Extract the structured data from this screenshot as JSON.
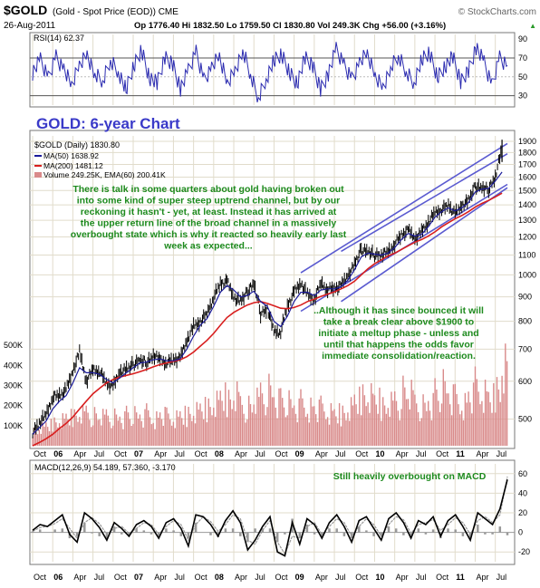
{
  "header": {
    "symbol": "$GOLD",
    "description": "(Gold - Spot Price (EOD)) CME",
    "source": "© StockCharts.com",
    "date": "26-Aug-2011",
    "stats": "Op 1776.40  Hi 1832.50  Lo 1759.50  Cl 1830.80  Vol 249.3K  Chg +56.00 (+3.16%)",
    "stats_marker": "▲"
  },
  "colors": {
    "rsi_line": "#2b2bb0",
    "price_bar": "#000000",
    "ma50": "#1a1a9a",
    "ma200": "#d81e1e",
    "volume": "#d98a8a",
    "channel": "#5a5ad0",
    "annotation_green": "#1d8a1d",
    "title_blue": "#3a3ac8",
    "macd": "#000000",
    "signal": "#999999",
    "panel_bg": "#f7f3e6",
    "grid": "#e1dccb"
  },
  "chart_data": [
    {
      "type": "line",
      "panel": "rsi",
      "label": "RSI(14) 62.37",
      "ylim": [
        20,
        95
      ],
      "reference_lines": [
        30,
        50,
        70
      ],
      "tick_labels": [
        "90",
        "70",
        "50",
        "30"
      ],
      "series": [
        {
          "name": "RSI(14)",
          "values": [
            55,
            67,
            48,
            72,
            58,
            40,
            63,
            75,
            52,
            45,
            68,
            57,
            35,
            61,
            79,
            50,
            42,
            70,
            64,
            38,
            55,
            76,
            47,
            60,
            71,
            43,
            58,
            77,
            52,
            28,
            49,
            66,
            73,
            55,
            44,
            69,
            61,
            37,
            54,
            78,
            62,
            48,
            65,
            74,
            51,
            40,
            59,
            72,
            56,
            45,
            67,
            75,
            50,
            62,
            70,
            44,
            57,
            82,
            64,
            40,
            71,
            62
          ]
        }
      ]
    },
    {
      "type": "line",
      "panel": "price",
      "title": "GOLD: 6-year Chart",
      "legend": [
        "$GOLD (Daily) 1830.80",
        "MA(50) 1638.92",
        "MA(200) 1481.12",
        "Volume 249.25K, EMA(60) 200.41K"
      ],
      "x_tick_labels": [
        "Oct",
        "06",
        "Apr",
        "Jul",
        "Oct",
        "07",
        "Apr",
        "Jul",
        "Oct",
        "08",
        "Apr",
        "Jul",
        "Oct",
        "09",
        "Apr",
        "Jul",
        "Oct",
        "10",
        "Apr",
        "Jul",
        "Oct",
        "11",
        "Apr",
        "Jul"
      ],
      "y_tick_labels": [
        "1900",
        "1800",
        "1700",
        "1600",
        "1500",
        "1400",
        "1300",
        "1200",
        "1100",
        "1000",
        "900",
        "800",
        "700",
        "600",
        "500"
      ],
      "volume_tick_labels": [
        "500K",
        "400K",
        "300K",
        "200K",
        "100K"
      ],
      "ylim": [
        440,
        1950
      ],
      "scale": "log",
      "x": [
        "2005-10",
        "2005-11",
        "2005-12",
        "2006-01",
        "2006-02",
        "2006-03",
        "2006-04",
        "2006-05",
        "2006-06",
        "2006-07",
        "2006-08",
        "2006-09",
        "2006-10",
        "2006-11",
        "2006-12",
        "2007-01",
        "2007-02",
        "2007-03",
        "2007-04",
        "2007-05",
        "2007-06",
        "2007-07",
        "2007-08",
        "2007-09",
        "2007-10",
        "2007-11",
        "2007-12",
        "2008-01",
        "2008-02",
        "2008-03",
        "2008-04",
        "2008-05",
        "2008-06",
        "2008-07",
        "2008-08",
        "2008-09",
        "2008-10",
        "2008-11",
        "2008-12",
        "2009-01",
        "2009-02",
        "2009-03",
        "2009-04",
        "2009-05",
        "2009-06",
        "2009-07",
        "2009-08",
        "2009-09",
        "2009-10",
        "2009-11",
        "2009-12",
        "2010-01",
        "2010-02",
        "2010-03",
        "2010-04",
        "2010-05",
        "2010-06",
        "2010-07",
        "2010-08",
        "2010-09",
        "2010-10",
        "2010-11",
        "2010-12",
        "2011-01",
        "2011-02",
        "2011-03",
        "2011-04",
        "2011-05",
        "2011-06",
        "2011-07",
        "2011-08"
      ],
      "series": [
        {
          "name": "$GOLD",
          "values": [
            470,
            490,
            510,
            555,
            560,
            575,
            630,
            690,
            600,
            635,
            630,
            595,
            585,
            630,
            635,
            650,
            665,
            655,
            680,
            665,
            655,
            665,
            670,
            730,
            780,
            800,
            830,
            900,
            960,
            970,
            900,
            880,
            920,
            960,
            830,
            850,
            760,
            760,
            860,
            920,
            960,
            910,
            890,
            960,
            935,
            940,
            950,
            1000,
            1050,
            1130,
            1120,
            1100,
            1100,
            1115,
            1160,
            1210,
            1240,
            1190,
            1230,
            1290,
            1350,
            1370,
            1400,
            1340,
            1400,
            1430,
            1530,
            1520,
            1510,
            1600,
            1830
          ]
        },
        {
          "name": "MA(50)",
          "values": [
            465,
            480,
            495,
            525,
            545,
            560,
            595,
            640,
            625,
            625,
            620,
            605,
            595,
            610,
            625,
            640,
            655,
            658,
            665,
            668,
            662,
            662,
            668,
            700,
            745,
            785,
            810,
            860,
            920,
            950,
            930,
            900,
            905,
            925,
            880,
            860,
            800,
            780,
            820,
            880,
            920,
            920,
            905,
            930,
            935,
            935,
            945,
            975,
            1025,
            1090,
            1110,
            1105,
            1100,
            1110,
            1140,
            1185,
            1220,
            1205,
            1215,
            1260,
            1320,
            1355,
            1380,
            1360,
            1380,
            1415,
            1490,
            1510,
            1515,
            1570,
            1639
          ]
        },
        {
          "name": "MA(200)",
          "values": [
            440,
            447,
            455,
            465,
            478,
            490,
            505,
            525,
            545,
            565,
            580,
            595,
            605,
            612,
            617,
            622,
            628,
            635,
            643,
            650,
            655,
            660,
            665,
            675,
            690,
            710,
            730,
            755,
            785,
            815,
            835,
            850,
            865,
            875,
            880,
            872,
            862,
            852,
            850,
            855,
            865,
            880,
            890,
            902,
            912,
            922,
            935,
            950,
            970,
            1000,
            1030,
            1055,
            1075,
            1095,
            1110,
            1130,
            1150,
            1170,
            1185,
            1205,
            1230,
            1260,
            1285,
            1310,
            1330,
            1355,
            1385,
            1410,
            1430,
            1455,
            1481
          ]
        }
      ],
      "volume": [
        80,
        95,
        105,
        120,
        130,
        140,
        150,
        160,
        170,
        155,
        140,
        150,
        145,
        150,
        160,
        150,
        155,
        165,
        150,
        160,
        145,
        150,
        160,
        170,
        180,
        190,
        200,
        220,
        240,
        230,
        250,
        210,
        200,
        220,
        260,
        280,
        250,
        230,
        210,
        200,
        220,
        210,
        190,
        190,
        180,
        170,
        175,
        200,
        230,
        260,
        250,
        220,
        200,
        210,
        230,
        280,
        250,
        210,
        200,
        230,
        270,
        290,
        260,
        240,
        230,
        260,
        300,
        280,
        250,
        300,
        420
      ]
    },
    {
      "type": "line",
      "panel": "macd",
      "label": "MACD(12,26,9) 54.189, 57.360, -3.170",
      "ylim": [
        -30,
        70
      ],
      "tick_labels": [
        "60",
        "40",
        "20",
        "0",
        "-20"
      ],
      "series": [
        {
          "name": "MACD(12,26,9)",
          "values": [
            2,
            8,
            6,
            12,
            18,
            -2,
            -10,
            20,
            14,
            5,
            -8,
            10,
            4,
            -4,
            8,
            12,
            6,
            -6,
            10,
            14,
            4,
            -14,
            18,
            16,
            8,
            -4,
            12,
            22,
            10,
            -18,
            -8,
            6,
            16,
            -20,
            -24,
            10,
            -12,
            14,
            8,
            -6,
            10,
            18,
            6,
            -10,
            12,
            16,
            4,
            -8,
            14,
            20,
            10,
            -6,
            12,
            8,
            16,
            -4,
            12,
            18,
            6,
            -8,
            20,
            14,
            8,
            24,
            54
          ]
        },
        {
          "name": "Signal",
          "values": [
            1,
            5,
            6,
            9,
            14,
            4,
            -6,
            10,
            15,
            9,
            -2,
            4,
            6,
            -1,
            4,
            10,
            8,
            -2,
            6,
            12,
            8,
            -8,
            8,
            16,
            11,
            1,
            8,
            18,
            14,
            -8,
            -12,
            2,
            12,
            -10,
            -22,
            -4,
            -6,
            6,
            10,
            -2,
            6,
            14,
            10,
            -4,
            6,
            14,
            8,
            -4,
            8,
            16,
            13,
            -1,
            8,
            10,
            13,
            2,
            8,
            15,
            10,
            -2,
            12,
            16,
            10,
            18,
            57
          ]
        }
      ]
    }
  ],
  "annotations": {
    "channel_note": "There is talk in some quarters about gold having broken out into some kind of super steep uptrend channel, but by our reckoning it hasn't - yet, at least. Instead it has arrived at the upper return line of the broad channel in a massively overbought state which is why it reacted so heavily early last week as expected...",
    "meltup_note": "..Although it has since bounced it will take a break clear above $1900 to initiate a meltup phase - unless and until that happens the odds favor immediate consolidation/reaction.",
    "macd_note": "Still heavily overbought on MACD"
  }
}
